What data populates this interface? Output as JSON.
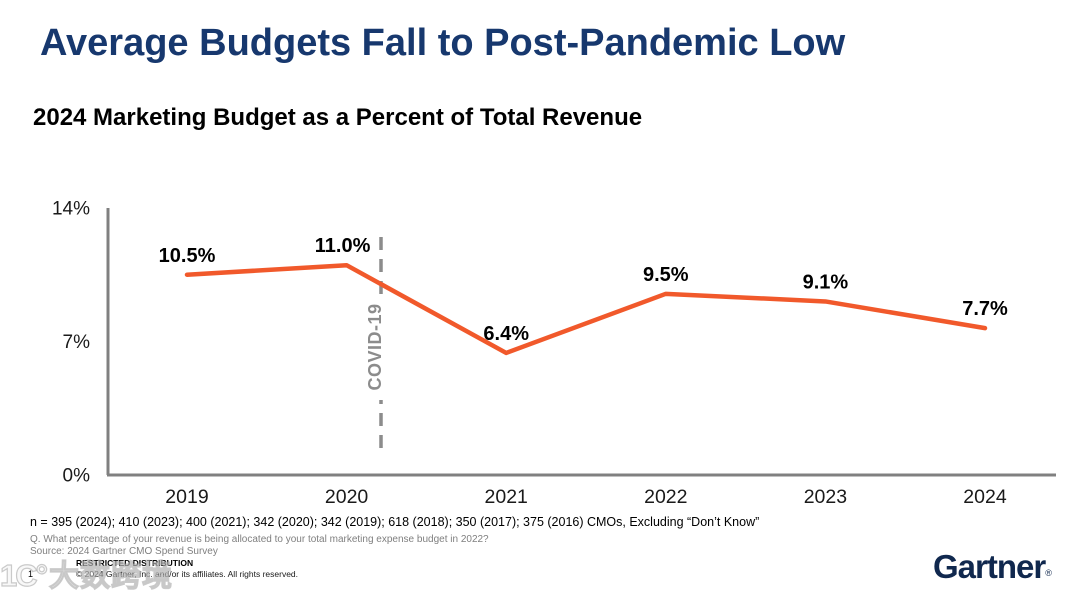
{
  "slide": {
    "title": "Average Budgets Fall to Post-Pandemic Low",
    "subtitle": "2024 Marketing Budget as a Percent of Total Revenue"
  },
  "chart_data": {
    "type": "line",
    "title": "Average Budgets Fall to Post-Pandemic Low",
    "subtitle": "2024 Marketing Budget as a Percent of Total Revenue",
    "categories": [
      "2019",
      "2020",
      "2021",
      "2022",
      "2023",
      "2024"
    ],
    "series": [
      {
        "name": "Marketing Budget as a Percent of Total Revenue",
        "values": [
          10.5,
          11.0,
          6.4,
          9.5,
          9.1,
          7.7
        ]
      }
    ],
    "value_labels": [
      "10.5%",
      "11.0%",
      "6.4%",
      "9.5%",
      "9.1%",
      "7.7%"
    ],
    "xlabel": "",
    "ylabel": "",
    "ylim": [
      0,
      14
    ],
    "yticks": [
      {
        "value": 14,
        "label": "14%"
      },
      {
        "value": 7,
        "label": "7%"
      },
      {
        "value": 0,
        "label": "0%"
      }
    ],
    "grid": false,
    "legend": false,
    "line_color": "#F1592B",
    "axis_color": "#808080",
    "tick_label_color": "#1a1a1a",
    "annotation": {
      "text": "COVID-19",
      "between_categories": [
        "2020",
        "2021"
      ],
      "line_style": "dashed-vertical",
      "color": "#8C8C8C"
    }
  },
  "footer": {
    "sample_note": "n = 395 (2024); 410 (2023); 400 (2021); 342 (2020); 342 (2019); 618 (2018); 350 (2017); 375 (2016) CMOs, Excluding “Don’t Know”",
    "question_note": "Q. What percentage of your revenue is being allocated to your total marketing expense budget in 2022?",
    "source_note": "Source: 2024 Gartner CMO Spend Survey",
    "restricted_label": "RESTRICTED DISTRIBUTION",
    "page_number": "1",
    "copyright": "© 2024 Gartner, Inc. and/or its affiliates. All rights reserved.",
    "brand": "Gartner",
    "brand_mark": "®"
  },
  "watermark": {
    "logo": "1C°",
    "text": "大数跨境"
  },
  "colors": {
    "title_navy": "#17386E",
    "brand_navy": "#10284E",
    "line_orange": "#F1592B",
    "axis_gray": "#808080",
    "annotation_gray": "#8C8C8C"
  }
}
